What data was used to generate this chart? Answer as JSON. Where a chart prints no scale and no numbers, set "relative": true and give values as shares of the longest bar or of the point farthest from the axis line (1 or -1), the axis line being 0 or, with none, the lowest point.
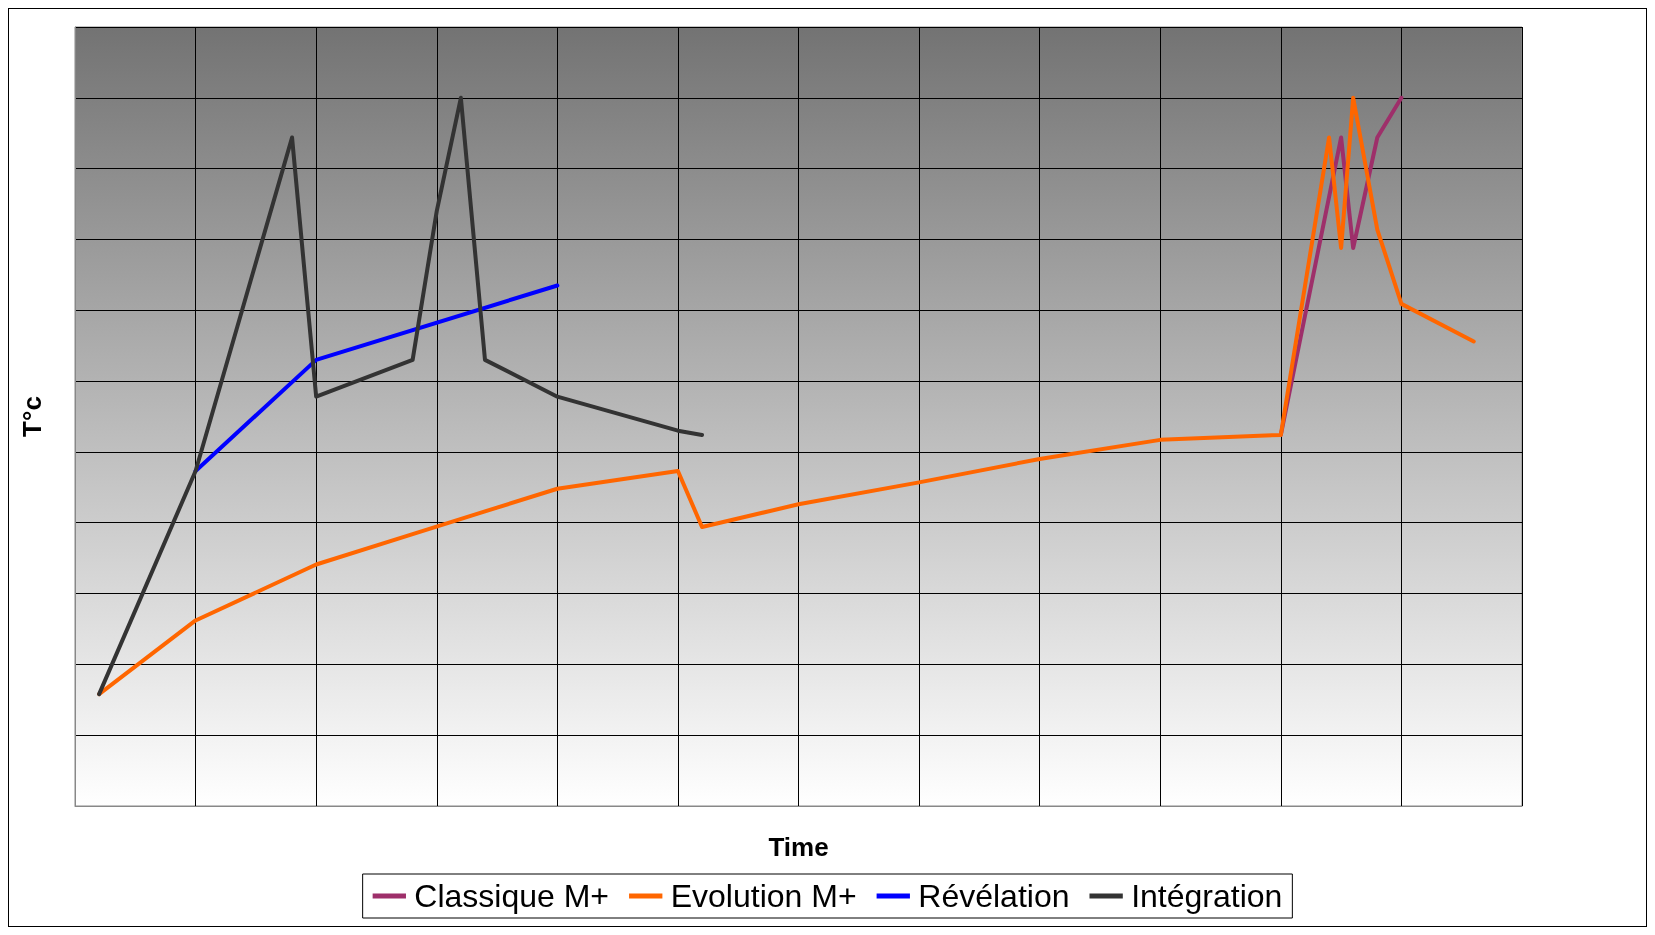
{
  "chart_data": {
    "type": "line",
    "xlabel": "Time",
    "ylabel": "T°c",
    "relative": true,
    "grid": true,
    "legend": "bottom",
    "marker": "none",
    "line_style": "solid",
    "categories": [
      null,
      null,
      null,
      null,
      null,
      null,
      null,
      null,
      null,
      null,
      null,
      null,
      null,
      null,
      null,
      null,
      null,
      null,
      null,
      null,
      null,
      null,
      null,
      null,
      null,
      null,
      null,
      null,
      null,
      null,
      null,
      null,
      null,
      null,
      null,
      null,
      null,
      null,
      null,
      null,
      null,
      null,
      null,
      null,
      null,
      null,
      null,
      null,
      null,
      null,
      null,
      null,
      null,
      null,
      null,
      null,
      null,
      null,
      null,
      null,
      null,
      null,
      null,
      null,
      null,
      null,
      null,
      null,
      null,
      null,
      null,
      null,
      null,
      null,
      null,
      null,
      null,
      null,
      null,
      null,
      null,
      null,
      null,
      null,
      null,
      null,
      null,
      null,
      null,
      null,
      null,
      null,
      null,
      null,
      null,
      null,
      null,
      null,
      null,
      null,
      null,
      null,
      null,
      null,
      null,
      null,
      null,
      null,
      null,
      null,
      null,
      null,
      null,
      null,
      null,
      null,
      null,
      null,
      null,
      null,
      null
    ],
    "series": [
      {
        "name": "Classique M+",
        "color": "#9e2f6a",
        "values": [
          null,
          null,
          null,
          null,
          null,
          null,
          null,
          null,
          null,
          null,
          null,
          null,
          null,
          null,
          null,
          null,
          null,
          null,
          null,
          null,
          null,
          null,
          null,
          null,
          null,
          null,
          null,
          null,
          null,
          null,
          null,
          null,
          null,
          null,
          null,
          null,
          null,
          null,
          null,
          null,
          null,
          null,
          null,
          null,
          null,
          null,
          null,
          null,
          null,
          null,
          null,
          null,
          null,
          null,
          null,
          null,
          null,
          null,
          null,
          null,
          null,
          null,
          null,
          null,
          null,
          null,
          null,
          null,
          null,
          null,
          null,
          null,
          null,
          null,
          null,
          null,
          null,
          null,
          null,
          null,
          null,
          null,
          null,
          null,
          null,
          null,
          null,
          null,
          null,
          null,
          null,
          null,
          null,
          null,
          null,
          null,
          null,
          null,
          null,
          null,
          0.524,
          null,
          null,
          null,
          null,
          0.944,
          0.788,
          null,
          0.944,
          null,
          1,
          null,
          null,
          null,
          null,
          null,
          null,
          null,
          null,
          null,
          null
        ]
      },
      {
        "name": "Evolution M+",
        "color": "#ff6600",
        "values": [
          null,
          null,
          0.158,
          null,
          null,
          null,
          null,
          null,
          null,
          null,
          0.262,
          null,
          null,
          null,
          null,
          null,
          null,
          null,
          null,
          null,
          0.341,
          null,
          null,
          null,
          null,
          null,
          null,
          null,
          0.384,
          null,
          null,
          null,
          null,
          null,
          0.416,
          null,
          null,
          null,
          null,
          null,
          0.448,
          null,
          null,
          null,
          null,
          null,
          null,
          null,
          null,
          null,
          0.473,
          null,
          0.394,
          null,
          null,
          null,
          null,
          null,
          null,
          null,
          0.426,
          null,
          null,
          null,
          null,
          null,
          null,
          null,
          null,
          null,
          0.457,
          null,
          null,
          null,
          null,
          null,
          null,
          null,
          null,
          null,
          0.49,
          null,
          null,
          null,
          null,
          null,
          null,
          null,
          null,
          null,
          0.517,
          null,
          null,
          null,
          null,
          null,
          null,
          null,
          null,
          null,
          0.524,
          null,
          null,
          null,
          0.944,
          0.788,
          1,
          null,
          0.814,
          null,
          0.709,
          null,
          null,
          null,
          null,
          null,
          0.656,
          null,
          null,
          null,
          null
        ]
      },
      {
        "name": "Révélation",
        "color": "#0000ff",
        "values": [
          null,
          null,
          null,
          null,
          null,
          null,
          null,
          null,
          null,
          null,
          0.473,
          null,
          null,
          null,
          null,
          null,
          null,
          null,
          null,
          null,
          0.63,
          null,
          null,
          null,
          null,
          null,
          null,
          null,
          null,
          null,
          null,
          null,
          null,
          null,
          null,
          null,
          null,
          null,
          null,
          null,
          0.735,
          null,
          null,
          null,
          null,
          null,
          null,
          null,
          null,
          null,
          null,
          null,
          null,
          null,
          null,
          null,
          null,
          null,
          null,
          null,
          null,
          null,
          null,
          null,
          null,
          null,
          null,
          null,
          null,
          null,
          null,
          null,
          null,
          null,
          null,
          null,
          null,
          null,
          null,
          null,
          null,
          null,
          null,
          null,
          null,
          null,
          null,
          null,
          null,
          null,
          null,
          null,
          null,
          null,
          null,
          null,
          null,
          null,
          null,
          null,
          null,
          null,
          null,
          null,
          null,
          null,
          null,
          null,
          null,
          null,
          null,
          null,
          null,
          null,
          null,
          null,
          null,
          null,
          null,
          null,
          null
        ]
      },
      {
        "name": "Intégration",
        "color": "#333333",
        "values": [
          null,
          null,
          0.158,
          null,
          null,
          null,
          null,
          null,
          null,
          null,
          0.473,
          null,
          null,
          null,
          null,
          null,
          null,
          null,
          0.944,
          null,
          0.578,
          null,
          null,
          null,
          null,
          null,
          null,
          null,
          0.63,
          null,
          0.84,
          null,
          1,
          null,
          0.63,
          null,
          null,
          null,
          null,
          null,
          0.578,
          null,
          null,
          null,
          null,
          null,
          null,
          null,
          null,
          null,
          0.53,
          null,
          0.524,
          null,
          null,
          null,
          null,
          null,
          null,
          null,
          null,
          null,
          null,
          null,
          null,
          null,
          null,
          null,
          null,
          null,
          null,
          null,
          null,
          null,
          null,
          null,
          null,
          null,
          null,
          null,
          null,
          null,
          null,
          null,
          null,
          null,
          null,
          null,
          null,
          null,
          null,
          null,
          null,
          null,
          null,
          null,
          null,
          null,
          null,
          null,
          null,
          null,
          null,
          null,
          null,
          null,
          null,
          null,
          null,
          null,
          null,
          null,
          null,
          null,
          null,
          null,
          null,
          null,
          null,
          null,
          null
        ]
      }
    ]
  }
}
